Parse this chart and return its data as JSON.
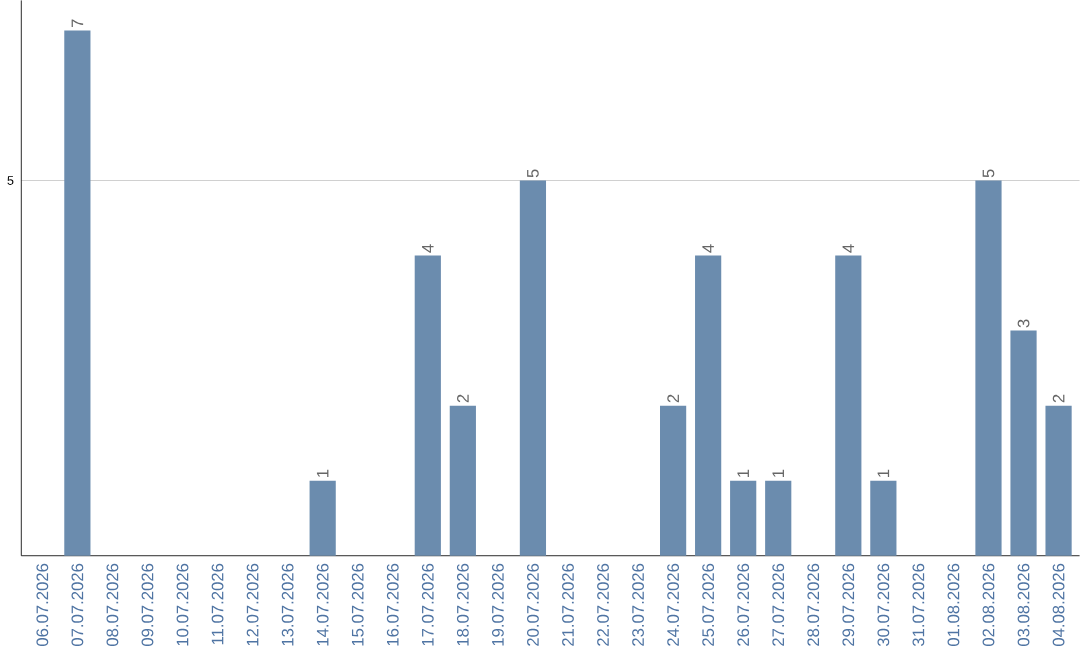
{
  "chart_data": {
    "type": "bar",
    "categories": [
      "06.07.2026",
      "07.07.2026",
      "08.07.2026",
      "09.07.2026",
      "10.07.2026",
      "11.07.2026",
      "12.07.2026",
      "13.07.2026",
      "14.07.2026",
      "15.07.2026",
      "16.07.2026",
      "17.07.2026",
      "18.07.2026",
      "19.07.2026",
      "20.07.2026",
      "21.07.2026",
      "22.07.2026",
      "23.07.2026",
      "24.07.2026",
      "25.07.2026",
      "26.07.2026",
      "27.07.2026",
      "28.07.2026",
      "29.07.2026",
      "30.07.2026",
      "31.07.2026",
      "01.08.2026",
      "02.08.2026",
      "03.08.2026",
      "04.08.2026"
    ],
    "values": [
      0,
      7,
      0,
      0,
      0,
      0,
      0,
      0,
      1,
      0,
      0,
      4,
      2,
      0,
      5,
      0,
      0,
      0,
      2,
      4,
      1,
      1,
      0,
      4,
      1,
      0,
      0,
      5,
      3,
      2
    ],
    "value_labels": [
      null,
      "7",
      null,
      null,
      null,
      null,
      null,
      null,
      "1",
      null,
      null,
      "4",
      "2",
      null,
      "5",
      null,
      null,
      null,
      "2",
      "4",
      "1",
      "1",
      null,
      "4",
      "1",
      null,
      null,
      "5",
      "3",
      "2"
    ],
    "color": "#6b8cae",
    "ylim": [
      0,
      7.4
    ],
    "yticks": [
      5
    ],
    "grid": "y"
  }
}
